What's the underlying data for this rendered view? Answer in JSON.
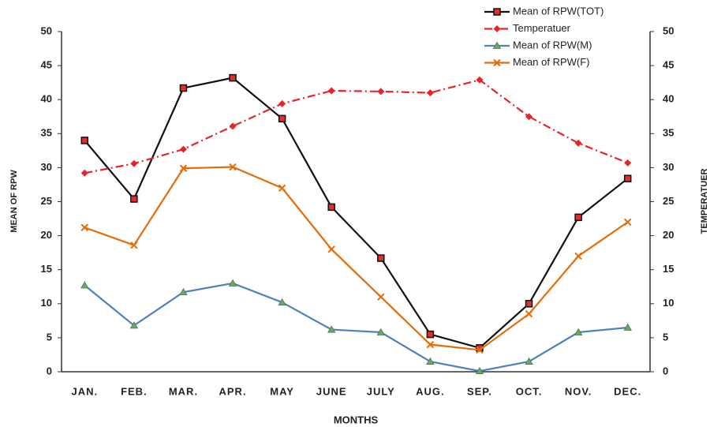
{
  "chart_data": {
    "type": "line",
    "categories": [
      "JAN.",
      "FEB.",
      "MAR.",
      "APR.",
      "MAY",
      "JUNE",
      "JULY",
      "AUG.",
      "SEP.",
      "OCT.",
      "NOV.",
      "DEC."
    ],
    "xlabel": "MONTHS",
    "ylabel": "MEAN OF RPW",
    "y2label": "TEMPERATUER",
    "ylim": [
      0,
      50
    ],
    "yticks": [
      0,
      5,
      10,
      15,
      20,
      25,
      30,
      35,
      40,
      45,
      50
    ],
    "y2lim": [
      0,
      50
    ],
    "y2ticks": [
      0,
      5,
      10,
      15,
      20,
      25,
      30,
      35,
      40,
      45,
      50
    ],
    "legend": "top-right",
    "series": [
      {
        "name": "Mean of RPW(TOT)",
        "color": "#111111",
        "marker": "square",
        "marker_color": "#e0302a",
        "line_style": "solid",
        "values": [
          34,
          25.4,
          41.7,
          43.2,
          37.2,
          24.2,
          16.7,
          5.5,
          3.5,
          10,
          22.7,
          28.4
        ]
      },
      {
        "name": "Temperatuer",
        "color": "#e8242a",
        "marker": "diamond",
        "marker_color": "#e8242a",
        "line_style": "dashdot",
        "axis": "y2",
        "values": [
          29.2,
          30.6,
          32.7,
          36.1,
          39.4,
          41.3,
          41.2,
          41,
          42.9,
          37.5,
          33.6,
          30.7
        ]
      },
      {
        "name": "Mean of RPW(M)",
        "color": "#4f81bd",
        "marker": "triangle",
        "marker_color": "#6aa86a",
        "line_style": "solid",
        "values": [
          12.7,
          6.8,
          11.7,
          13,
          10.2,
          6.2,
          5.8,
          1.5,
          0.1,
          1.5,
          5.8,
          6.5
        ]
      },
      {
        "name": "Mean of RPW(F)",
        "color": "#e46c0a",
        "marker": "x",
        "marker_color": "#e46c0a",
        "line_style": "solid",
        "values": [
          21.2,
          18.6,
          29.9,
          30.1,
          27,
          18,
          11,
          4,
          3.2,
          8.5,
          17,
          22
        ]
      }
    ]
  }
}
